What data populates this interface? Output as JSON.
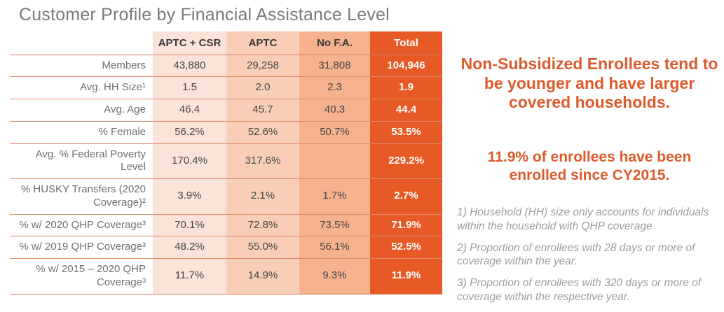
{
  "title": "Customer Profile by Financial Assistance Level",
  "table": {
    "columns": [
      "APTC + CSR",
      "APTC",
      "No F.A.",
      "Total"
    ],
    "rows": [
      {
        "label": "Members",
        "values": [
          "43,880",
          "29,258",
          "31,808",
          "104,946"
        ]
      },
      {
        "label": "Avg. HH Size¹",
        "values": [
          "1.5",
          "2.0",
          "2.3",
          "1.9"
        ]
      },
      {
        "label": "Avg. Age",
        "values": [
          "46.4",
          "45.7",
          "40.3",
          "44.4"
        ]
      },
      {
        "label": "% Female",
        "values": [
          "56.2%",
          "52.6%",
          "50.7%",
          "53.5%"
        ]
      },
      {
        "label": "Avg. % Federal Poverty Level",
        "values": [
          "170.4%",
          "317.6%",
          "",
          "229.2%"
        ]
      },
      {
        "label": "% HUSKY Transfers (2020 Coverage)²",
        "values": [
          "3.9%",
          "2.1%",
          "1.7%",
          "2.7%"
        ]
      },
      {
        "label": "% w/ 2020 QHP Coverage³",
        "values": [
          "70.1%",
          "72.8%",
          "73.5%",
          "71.9%"
        ]
      },
      {
        "label": "% w/ 2019 QHP Coverage³",
        "values": [
          "48.2%",
          "55.0%",
          "56.1%",
          "52.5%"
        ]
      },
      {
        "label": "% w/ 2015 – 2020 QHP Coverage³",
        "values": [
          "11.7%",
          "14.9%",
          "9.3%",
          "11.9%"
        ]
      }
    ]
  },
  "insights": {
    "headline1": "Non-Subsidized Enrollees tend to be younger and have larger covered households.",
    "headline2": "11.9% of enrollees have been enrolled since CY2015."
  },
  "footnotes": [
    "1) Household (HH) size only accounts for individuals within the household with QHP coverage",
    "2) Proportion of enrollees with 28 days or more of coverage within the year.",
    "3) Proportion of enrollees with 320 days or more of coverage within the respective year."
  ],
  "colors": {
    "accent_orange": "#e75a25",
    "headline_orange": "#dc5b2c",
    "col_aptc_csr_bg": "#fbe3d9",
    "col_aptc_bg": "#f9ceb6",
    "col_no_fa_bg": "#f6b18f",
    "divider_line": "#e08a68",
    "title_gray": "#7a7a7a",
    "footnote_gray": "#9d9d9d"
  }
}
